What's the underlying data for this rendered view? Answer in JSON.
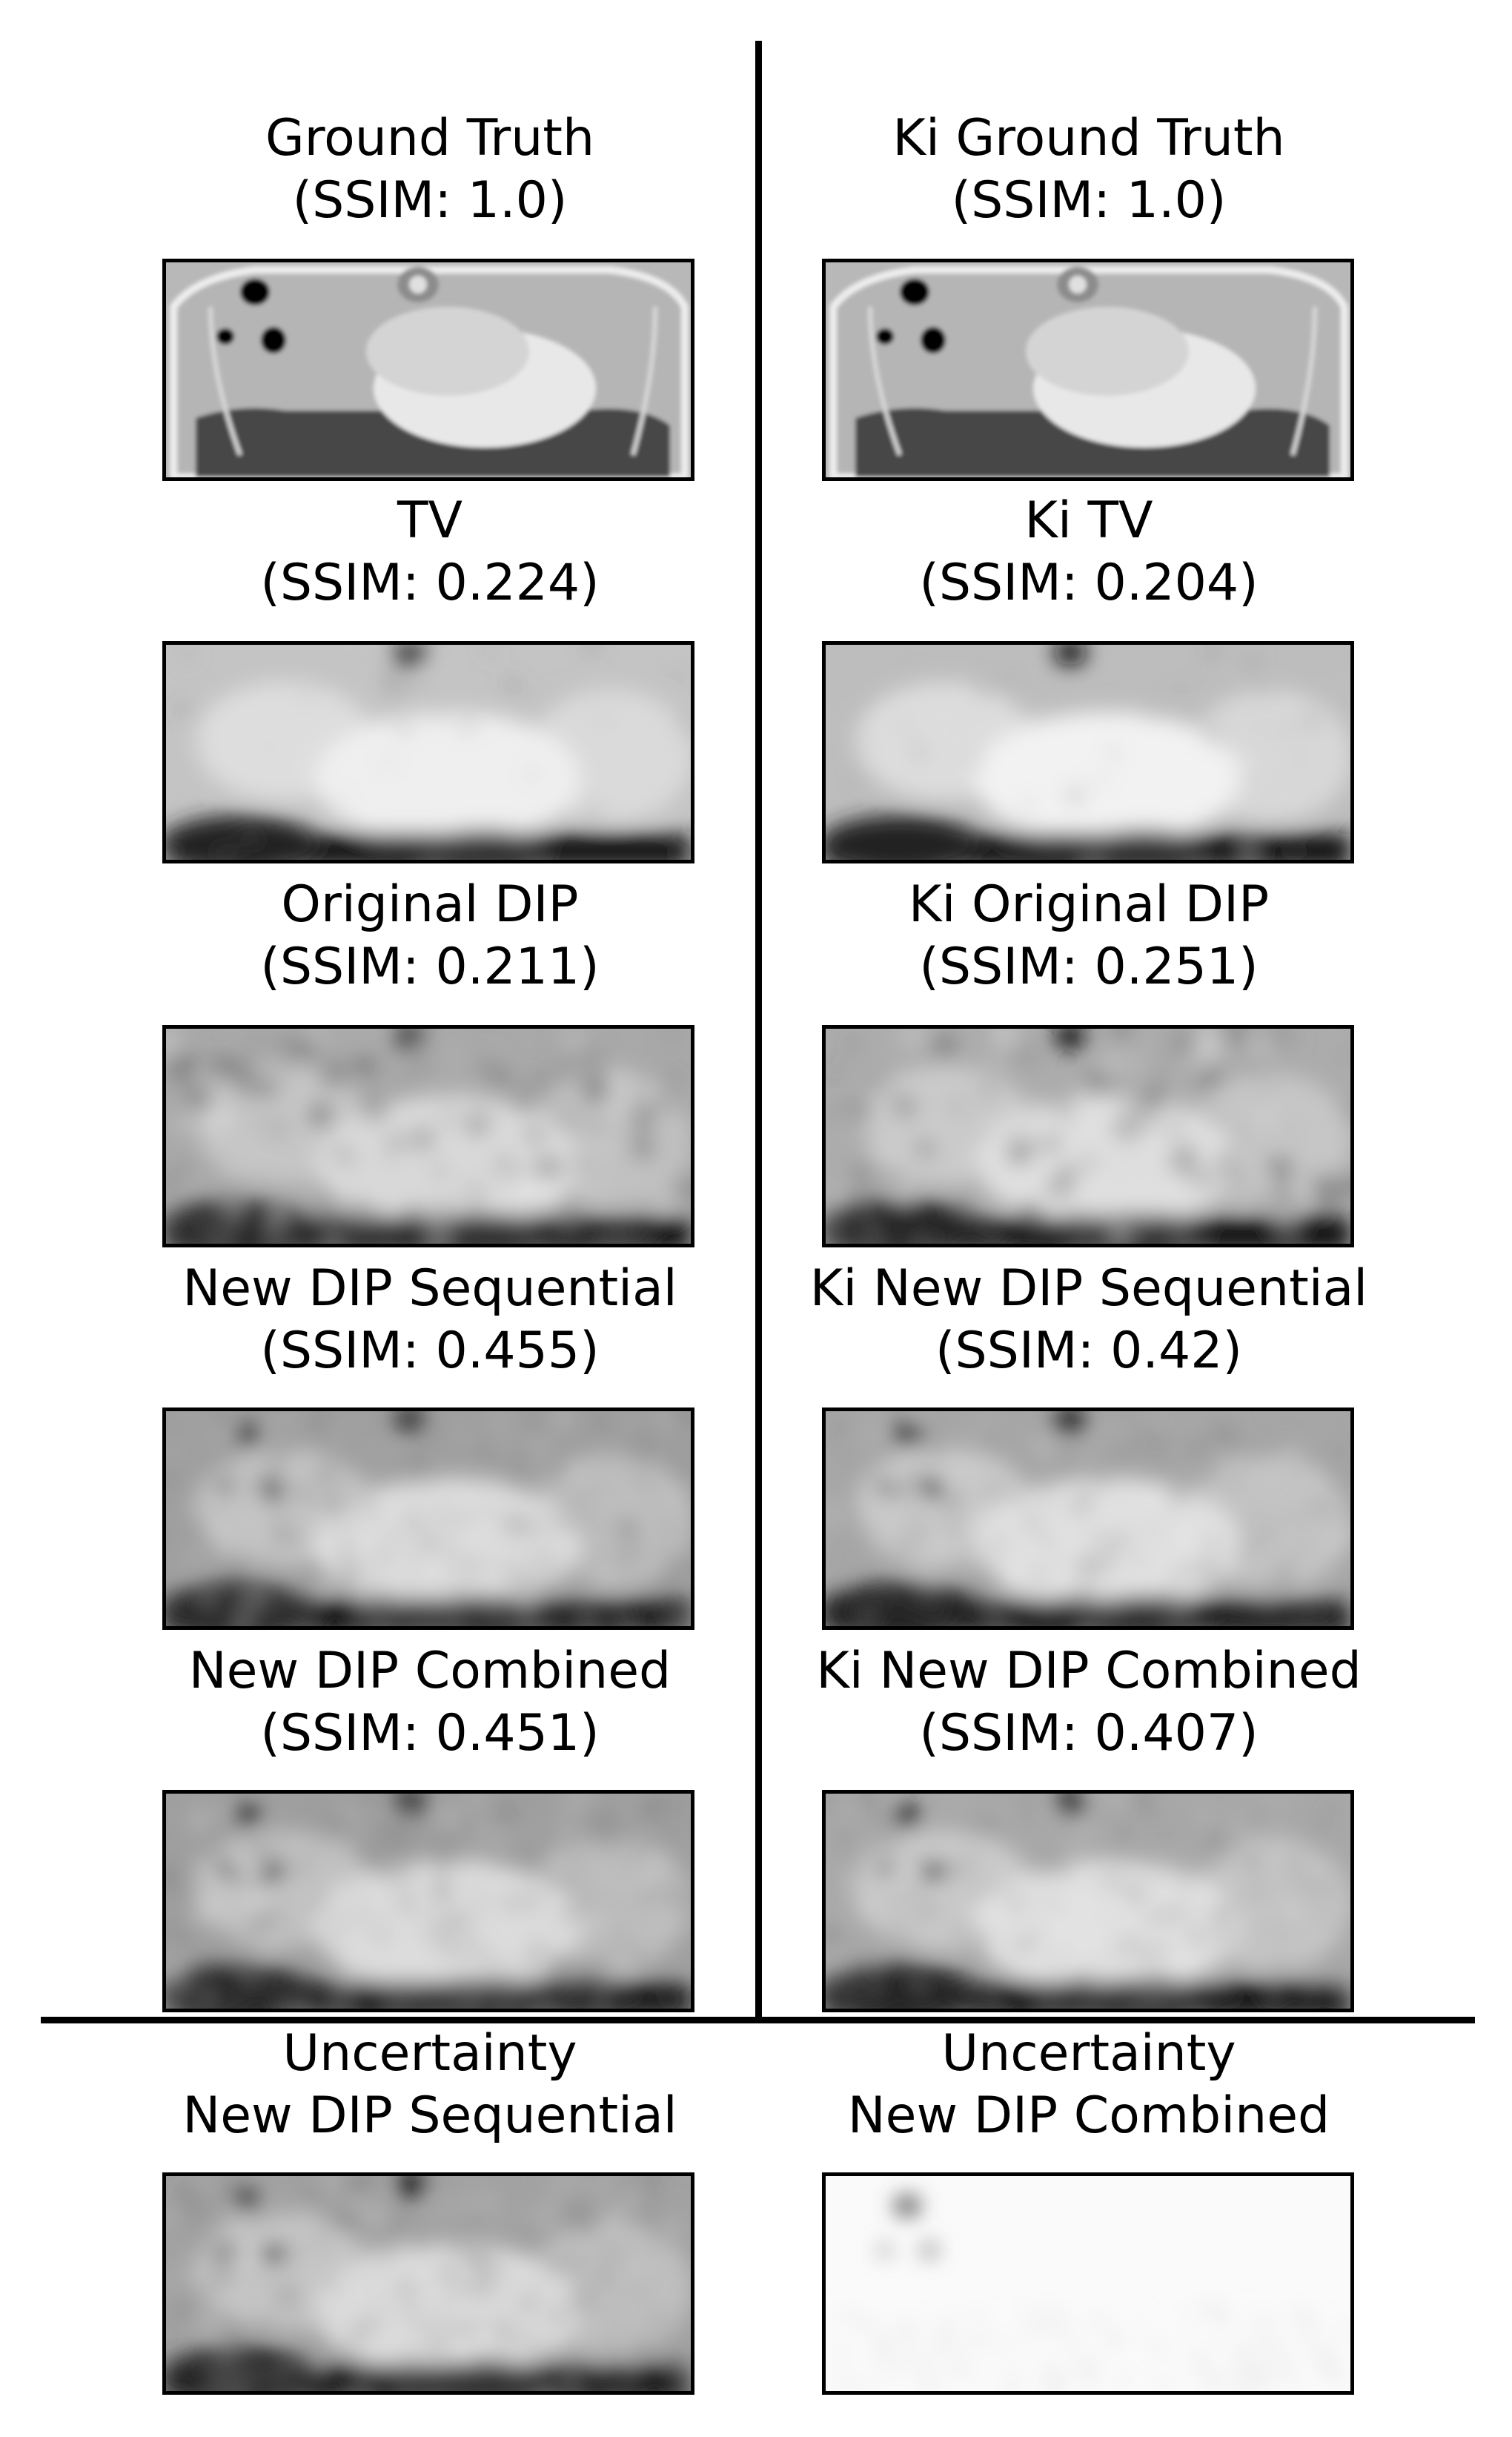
{
  "panels": [
    {
      "id": "gt",
      "title": "Ground Truth",
      "subtitle": "(SSIM: 1.0)",
      "style": "ground_truth",
      "colors": {
        "bg": "#b8b8b8",
        "fg": "#e9e9e9"
      }
    },
    {
      "id": "ki_gt",
      "title": "Ki Ground Truth",
      "subtitle": "(SSIM: 1.0)",
      "style": "ground_truth",
      "colors": {
        "bg": "#b8b8b8",
        "fg": "#e9e9e9"
      }
    },
    {
      "id": "tv",
      "title": "TV",
      "subtitle": "(SSIM: 0.224)",
      "style": "smooth",
      "colors": {
        "bg": "#c4c4c4",
        "fg": "#efefef"
      }
    },
    {
      "id": "ki_tv",
      "title": "Ki TV",
      "subtitle": "(SSIM: 0.204)",
      "style": "smooth",
      "colors": {
        "bg": "#bdbdbd",
        "fg": "#f2f2f2"
      }
    },
    {
      "id": "dip",
      "title": "Original DIP",
      "subtitle": "(SSIM: 0.211)",
      "style": "blotchy",
      "colors": {
        "bg": "#a9a9a9",
        "fg": "#d9d9d9"
      }
    },
    {
      "id": "ki_dip",
      "title": "Ki Original DIP",
      "subtitle": "(SSIM: 0.251)",
      "style": "blotchy",
      "colors": {
        "bg": "#acacac",
        "fg": "#e0e0e0"
      }
    },
    {
      "id": "seq",
      "title": "New DIP Sequential",
      "subtitle": "(SSIM: 0.455)",
      "style": "noisy",
      "colors": {
        "bg": "#9f9f9f",
        "fg": "#dcdcdc"
      }
    },
    {
      "id": "ki_seq",
      "title": "Ki New DIP Sequential",
      "subtitle": "(SSIM: 0.42)",
      "style": "noisy_soft",
      "colors": {
        "bg": "#a6a6a6",
        "fg": "#e2e2e2"
      }
    },
    {
      "id": "comb",
      "title": "New DIP Combined",
      "subtitle": "(SSIM: 0.451)",
      "style": "noisy",
      "colors": {
        "bg": "#9f9f9f",
        "fg": "#dcdcdc"
      }
    },
    {
      "id": "ki_comb",
      "title": "Ki New DIP Combined",
      "subtitle": "(SSIM: 0.407)",
      "style": "noisy_soft",
      "colors": {
        "bg": "#a8a8a8",
        "fg": "#e2e2e2"
      }
    },
    {
      "id": "unc_seq",
      "title": "Uncertainty",
      "subtitle": "New DIP Sequential",
      "style": "noisy",
      "colors": {
        "bg": "#a2a2a2",
        "fg": "#dcdcdc"
      }
    },
    {
      "id": "unc_comb",
      "title": "Uncertainty",
      "subtitle": "New DIP Combined",
      "style": "faint",
      "colors": {
        "bg": "#fafafa",
        "fg": "#ffffff"
      }
    }
  ]
}
